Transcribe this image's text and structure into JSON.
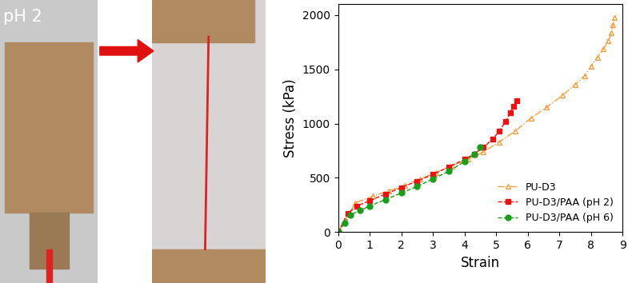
{
  "photo_label": "pH 2",
  "chart_data": {
    "type": "line",
    "x_label": "Strain",
    "y_label": "Stress (kPa)",
    "xlim": [
      0,
      9
    ],
    "xticks": [
      0,
      1,
      2,
      3,
      4,
      5,
      6,
      7,
      8,
      9
    ],
    "ylim": [
      0,
      2100
    ],
    "yticks": [
      0,
      500,
      1000,
      1500,
      2000
    ],
    "legend": "lower right",
    "series": [
      {
        "name": "PU-D3",
        "color": "#f4a040",
        "marker": "triangle",
        "line_style": "dashdot",
        "x": [
          0,
          0.55,
          1.1,
          1.6,
          2.1,
          2.6,
          3.1,
          3.6,
          4.1,
          4.6,
          5.1,
          5.6,
          6.1,
          6.6,
          7.1,
          7.5,
          7.8,
          8.0,
          8.2,
          8.4,
          8.55,
          8.65,
          8.7,
          8.75
        ],
        "values": [
          0,
          270,
          330,
          380,
          430,
          490,
          550,
          610,
          670,
          740,
          830,
          930,
          1050,
          1150,
          1260,
          1360,
          1440,
          1530,
          1610,
          1690,
          1760,
          1840,
          1910,
          1980
        ]
      },
      {
        "name": "PU-D3/PAA (pH 2)",
        "color": "#ee1111",
        "marker": "square",
        "line_style": "dashed",
        "x": [
          0,
          0.3,
          0.6,
          1.0,
          1.5,
          2.0,
          2.5,
          3.0,
          3.5,
          4.0,
          4.3,
          4.6,
          4.9,
          5.1,
          5.3,
          5.45,
          5.55,
          5.65
        ],
        "values": [
          0,
          170,
          240,
          290,
          350,
          410,
          470,
          530,
          600,
          670,
          720,
          780,
          860,
          930,
          1020,
          1100,
          1160,
          1210
        ]
      },
      {
        "name": "PU-D3/PAA (pH 6)",
        "color": "#1a9e1a",
        "marker": "circle",
        "line_style": "dashed",
        "x": [
          0,
          0.2,
          0.4,
          0.7,
          1.0,
          1.5,
          2.0,
          2.5,
          3.0,
          3.5,
          4.0,
          4.3,
          4.5
        ],
        "values": [
          0,
          80,
          160,
          200,
          240,
          300,
          360,
          420,
          490,
          560,
          650,
          720,
          780
        ]
      }
    ]
  }
}
